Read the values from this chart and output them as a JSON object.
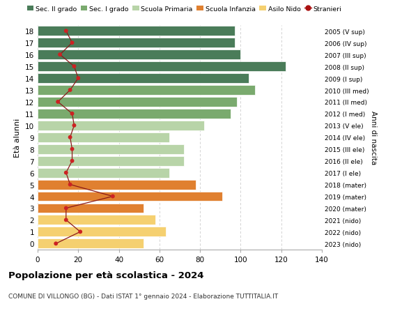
{
  "ages": [
    18,
    17,
    16,
    15,
    14,
    13,
    12,
    11,
    10,
    9,
    8,
    7,
    6,
    5,
    4,
    3,
    2,
    1,
    0
  ],
  "right_labels": [
    "2005 (V sup)",
    "2006 (IV sup)",
    "2007 (III sup)",
    "2008 (II sup)",
    "2009 (I sup)",
    "2010 (III med)",
    "2011 (II med)",
    "2012 (I med)",
    "2013 (V ele)",
    "2014 (IV ele)",
    "2015 (III ele)",
    "2016 (II ele)",
    "2017 (I ele)",
    "2018 (mater)",
    "2019 (mater)",
    "2020 (mater)",
    "2021 (nido)",
    "2022 (nido)",
    "2023 (nido)"
  ],
  "bar_values": [
    97,
    97,
    100,
    122,
    104,
    107,
    98,
    95,
    82,
    65,
    72,
    72,
    65,
    78,
    91,
    52,
    58,
    63,
    52
  ],
  "bar_colors": [
    "#4a7c59",
    "#4a7c59",
    "#4a7c59",
    "#4a7c59",
    "#4a7c59",
    "#7aaa6e",
    "#7aaa6e",
    "#7aaa6e",
    "#b8d4a8",
    "#b8d4a8",
    "#b8d4a8",
    "#b8d4a8",
    "#b8d4a8",
    "#e08030",
    "#e08030",
    "#e08030",
    "#f5d070",
    "#f5d070",
    "#f5d070"
  ],
  "stranieri_values": [
    14,
    17,
    11,
    18,
    20,
    16,
    10,
    17,
    18,
    16,
    17,
    17,
    14,
    16,
    37,
    14,
    14,
    21,
    9
  ],
  "legend_labels": [
    "Sec. II grado",
    "Sec. I grado",
    "Scuola Primaria",
    "Scuola Infanzia",
    "Asilo Nido",
    "Stranieri"
  ],
  "legend_colors": [
    "#4a7c59",
    "#7aaa6e",
    "#b8d4a8",
    "#e08030",
    "#f5d070",
    "#aa1111"
  ],
  "ylabel_left": "Età alunni",
  "ylabel_right": "Anni di nascita",
  "title": "Popolazione per età scolastica - 2024",
  "subtitle": "COMUNE DI VILLONGO (BG) - Dati ISTAT 1° gennaio 2024 - Elaborazione TUTTITALIA.IT",
  "xlim": [
    0,
    140
  ],
  "xticks": [
    0,
    20,
    40,
    60,
    80,
    100,
    120,
    140
  ],
  "background_color": "#ffffff",
  "grid_color": "#cccccc",
  "stranieri_line_color": "#8b1a1a",
  "stranieri_dot_color": "#cc2222"
}
